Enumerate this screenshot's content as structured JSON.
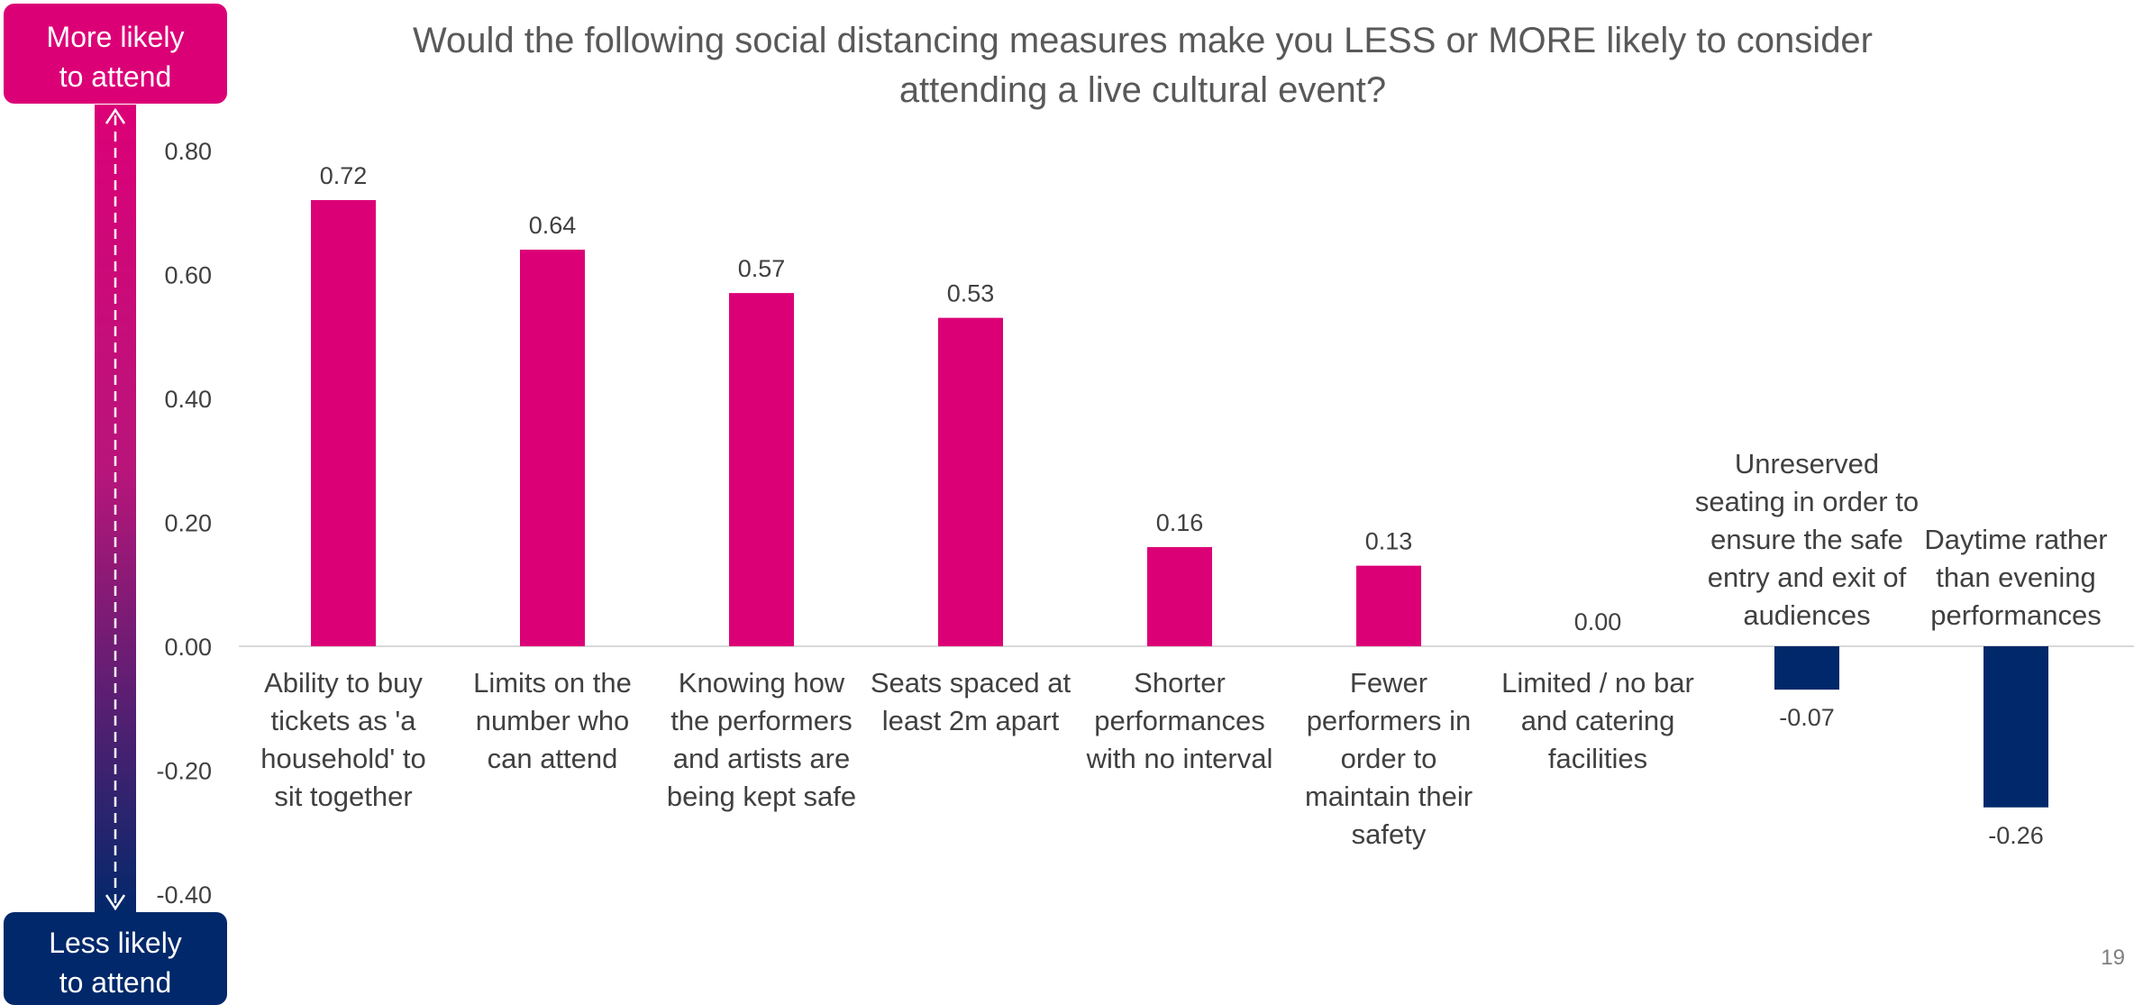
{
  "chart_data": {
    "type": "bar",
    "title_lines": [
      "Would the following social distancing measures make you LESS or MORE likely to consider",
      "attending a live cultural event?"
    ],
    "categories": [
      [
        "Ability to buy",
        "tickets as 'a",
        "household' to",
        "sit together"
      ],
      [
        "Limits on the",
        "number who",
        "can attend"
      ],
      [
        "Knowing how",
        "the performers",
        "and artists are",
        "being kept safe"
      ],
      [
        "Seats spaced at",
        "least 2m apart"
      ],
      [
        "Shorter",
        "performances",
        "with no interval"
      ],
      [
        "Fewer",
        "performers in",
        "order to",
        "maintain their",
        "safety"
      ],
      [
        "Limited / no bar",
        "and catering",
        "facilities"
      ],
      [
        "Unreserved",
        "seating in order to",
        "ensure the safe",
        "entry and exit of",
        "audiences"
      ],
      [
        "Daytime rather",
        "than evening",
        "performances"
      ]
    ],
    "values": [
      0.72,
      0.64,
      0.57,
      0.53,
      0.16,
      0.13,
      0.0,
      -0.07,
      -0.26
    ],
    "value_labels": [
      "0.72",
      "0.64",
      "0.57",
      "0.53",
      "0.16",
      "0.13",
      "0.00",
      "-0.07",
      "-0.26"
    ],
    "ylim": [
      -0.4,
      0.8
    ],
    "yticks": [
      "0.80",
      "0.60",
      "0.40",
      "0.20",
      "0.00",
      "-0.20",
      "-0.40"
    ],
    "ytick_values": [
      0.8,
      0.6,
      0.4,
      0.2,
      0.0,
      -0.2,
      -0.4
    ],
    "grid": false,
    "colors": {
      "positive": "#dc0077",
      "negative": "#00286a"
    }
  },
  "scale_indicator": {
    "top_label": [
      "More likely",
      "to attend"
    ],
    "bottom_label": [
      "Less likely",
      "to attend"
    ],
    "top_color": "#dc0077",
    "bottom_color": "#00286a"
  },
  "page_number": "19"
}
